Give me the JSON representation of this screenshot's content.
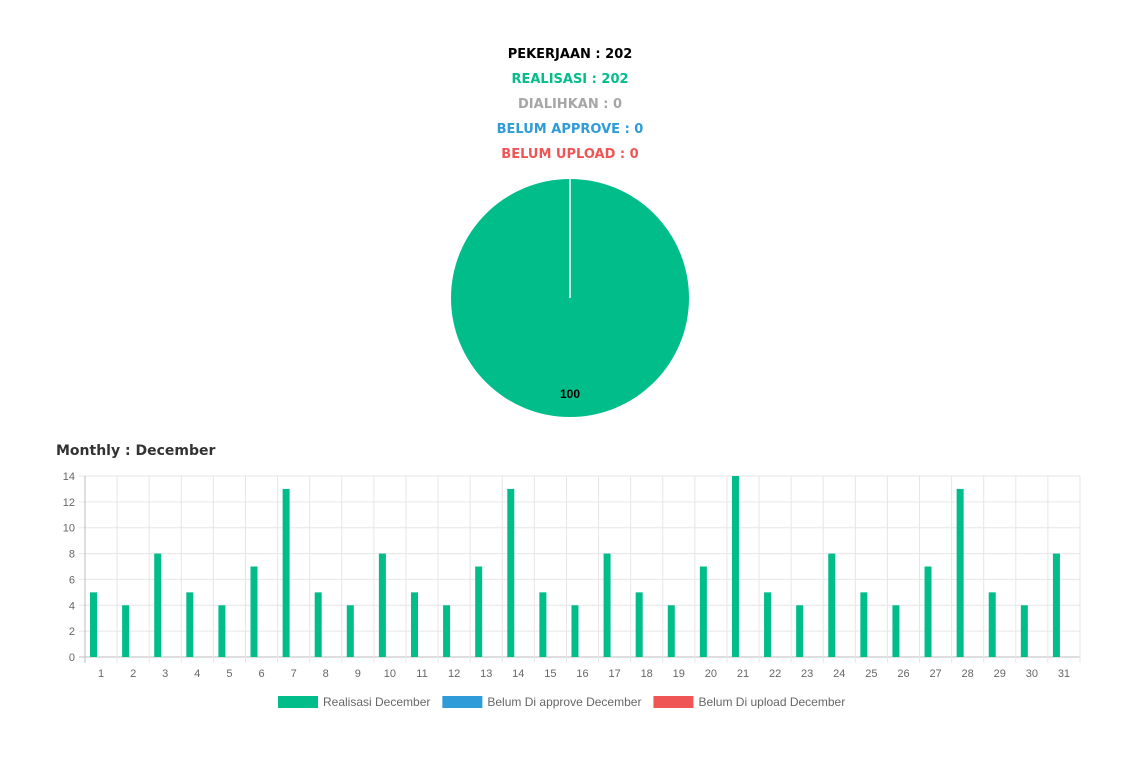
{
  "summary": {
    "pekerjaan": "PEKERJAAN : 202",
    "realisasi": "REALISASI : 202",
    "dialihkan": "DIALIHKAN : 0",
    "belum_approve": "BELUM APPROVE : 0",
    "belum_upload": "BELUM UPLOAD : 0"
  },
  "colors": {
    "pekerjaan": "#000000",
    "realisasi": "#00bd8a",
    "dialihkan": "#a6a6a6",
    "belum_approve": "#2f9bd9",
    "belum_upload": "#f05555"
  },
  "monthly_title": "Monthly : December",
  "chart_data": [
    {
      "type": "pie",
      "slices": [
        {
          "label": "Realisasi",
          "value": 100,
          "color": "#00bd8a"
        }
      ],
      "data_labels": [
        "100"
      ]
    },
    {
      "type": "bar",
      "categories": [
        "1",
        "2",
        "3",
        "4",
        "5",
        "6",
        "7",
        "8",
        "9",
        "10",
        "11",
        "12",
        "13",
        "14",
        "15",
        "16",
        "17",
        "18",
        "19",
        "20",
        "21",
        "22",
        "23",
        "24",
        "25",
        "26",
        "27",
        "28",
        "29",
        "30",
        "31"
      ],
      "series": [
        {
          "name": "Realisasi December",
          "color": "#00bd8a",
          "values": [
            5,
            4,
            8,
            5,
            4,
            7,
            13,
            5,
            4,
            8,
            5,
            4,
            7,
            13,
            5,
            4,
            8,
            5,
            4,
            7,
            14,
            5,
            4,
            8,
            5,
            4,
            7,
            13,
            5,
            4,
            8
          ]
        },
        {
          "name": "Belum Di approve December",
          "color": "#2f9bd9",
          "values": [
            0,
            0,
            0,
            0,
            0,
            0,
            0,
            0,
            0,
            0,
            0,
            0,
            0,
            0,
            0,
            0,
            0,
            0,
            0,
            0,
            0,
            0,
            0,
            0,
            0,
            0,
            0,
            0,
            0,
            0,
            0
          ]
        },
        {
          "name": "Belum Di upload December",
          "color": "#f05555",
          "values": [
            0,
            0,
            0,
            0,
            0,
            0,
            0,
            0,
            0,
            0,
            0,
            0,
            0,
            0,
            0,
            0,
            0,
            0,
            0,
            0,
            0,
            0,
            0,
            0,
            0,
            0,
            0,
            0,
            0,
            0,
            0
          ]
        }
      ],
      "yticks": [
        0,
        2,
        4,
        6,
        8,
        10,
        12,
        14
      ],
      "ylim": [
        0,
        14
      ],
      "grid": true,
      "legend": "bottom"
    }
  ]
}
